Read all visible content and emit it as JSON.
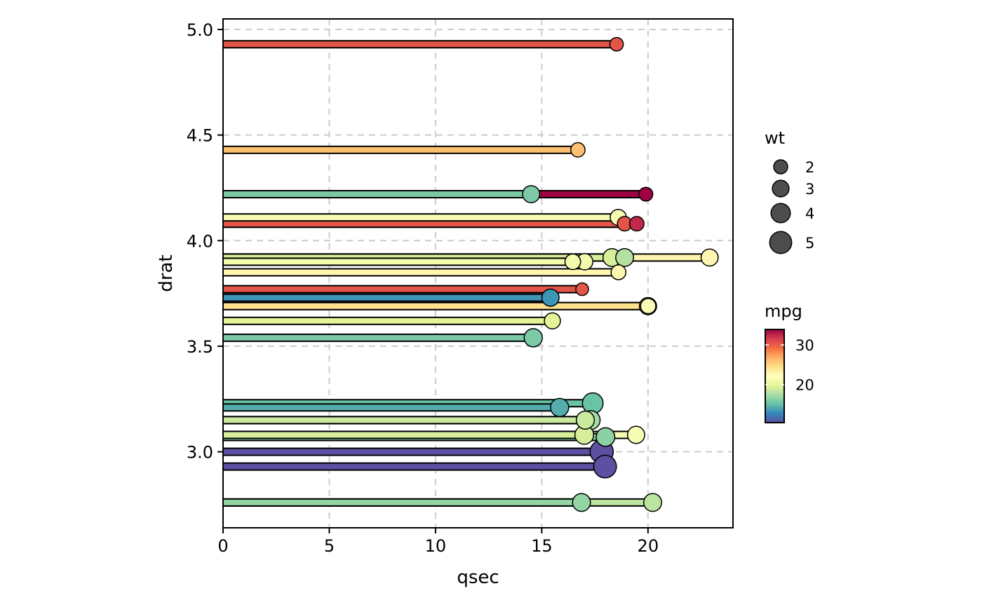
{
  "chart_data": {
    "type": "lollipop",
    "orientation": "horizontal",
    "xlabel": "qsec",
    "ylabel": "drat",
    "xlim": [
      0,
      24
    ],
    "ylim": [
      2.64,
      5.05
    ],
    "x_ticks": [
      0,
      5,
      10,
      15,
      20
    ],
    "x_tick_labels": [
      "0",
      "5",
      "10",
      "15",
      "20"
    ],
    "y_ticks": [
      3.0,
      3.5,
      4.0,
      4.5,
      5.0
    ],
    "y_tick_labels": [
      "3.0",
      "3.5",
      "4.0",
      "4.5",
      "5.0"
    ],
    "grid": true,
    "legend_position": "right",
    "size_legend": {
      "title": "wt",
      "values": [
        2,
        3,
        4,
        5
      ],
      "labels": [
        "2",
        "3",
        "4",
        "5"
      ]
    },
    "color_legend": {
      "title": "mpg",
      "range": [
        10.4,
        33.9
      ],
      "ticks": [
        20,
        30
      ],
      "tick_labels": [
        "20",
        "30"
      ],
      "colors": [
        "#5e4fa2",
        "#3288bd",
        "#66c2a5",
        "#abdda4",
        "#e6f598",
        "#ffffbf",
        "#fee08b",
        "#fdae61",
        "#f46d43",
        "#d53e4f",
        "#9e0142"
      ]
    },
    "points": [
      {
        "qsec": 18.52,
        "drat": 4.93,
        "wt": 1.835,
        "mpg": 30.4
      },
      {
        "qsec": 16.7,
        "drat": 4.43,
        "wt": 2.14,
        "mpg": 26.0
      },
      {
        "qsec": 14.5,
        "drat": 4.22,
        "wt": 3.17,
        "mpg": 15.8
      },
      {
        "qsec": 19.9,
        "drat": 4.22,
        "wt": 1.935,
        "mpg": 33.9
      },
      {
        "qsec": 18.6,
        "drat": 4.11,
        "wt": 2.78,
        "mpg": 21.4
      },
      {
        "qsec": 18.9,
        "drat": 4.08,
        "wt": 2.2,
        "mpg": 30.4
      },
      {
        "qsec": 19.47,
        "drat": 4.08,
        "wt": 2.2,
        "mpg": 32.4
      },
      {
        "qsec": 16.46,
        "drat": 3.9,
        "wt": 2.62,
        "mpg": 21.0
      },
      {
        "qsec": 17.02,
        "drat": 3.9,
        "wt": 2.875,
        "mpg": 21.0
      },
      {
        "qsec": 18.3,
        "drat": 3.92,
        "wt": 3.44,
        "mpg": 19.2
      },
      {
        "qsec": 18.9,
        "drat": 3.92,
        "wt": 3.44,
        "mpg": 17.8
      },
      {
        "qsec": 22.9,
        "drat": 3.92,
        "wt": 3.15,
        "mpg": 22.8
      },
      {
        "qsec": 18.61,
        "drat": 3.85,
        "wt": 2.32,
        "mpg": 22.8
      },
      {
        "qsec": 16.9,
        "drat": 3.77,
        "wt": 1.513,
        "mpg": 30.4
      },
      {
        "qsec": 15.41,
        "drat": 3.73,
        "wt": 3.215,
        "mpg": 13.3
      },
      {
        "qsec": 20.01,
        "drat": 3.69,
        "wt": 2.465,
        "mpg": 21.5
      },
      {
        "qsec": 20.0,
        "drat": 3.69,
        "wt": 3.19,
        "mpg": 24.4
      },
      {
        "qsec": 15.5,
        "drat": 3.62,
        "wt": 2.77,
        "mpg": 19.7
      },
      {
        "qsec": 14.6,
        "drat": 3.54,
        "wt": 3.57,
        "mpg": 15.8
      },
      {
        "qsec": 17.4,
        "drat": 3.23,
        "wt": 4.5,
        "mpg": 15.2
      },
      {
        "qsec": 15.84,
        "drat": 3.21,
        "wt": 3.57,
        "mpg": 14.3
      },
      {
        "qsec": 17.05,
        "drat": 3.15,
        "wt": 3.52,
        "mpg": 18.7
      },
      {
        "qsec": 17.3,
        "drat": 3.15,
        "wt": 3.845,
        "mpg": 17.3
      },
      {
        "qsec": 19.44,
        "drat": 3.08,
        "wt": 3.215,
        "mpg": 21.4
      },
      {
        "qsec": 17.0,
        "drat": 3.08,
        "wt": 3.78,
        "mpg": 19.2
      },
      {
        "qsec": 18.0,
        "drat": 3.07,
        "wt": 3.73,
        "mpg": 16.4
      },
      {
        "qsec": 17.82,
        "drat": 3.0,
        "wt": 5.424,
        "mpg": 10.4
      },
      {
        "qsec": 17.98,
        "drat": 2.93,
        "wt": 5.25,
        "mpg": 10.4
      },
      {
        "qsec": 16.87,
        "drat": 2.76,
        "wt": 3.46,
        "mpg": 16.7
      },
      {
        "qsec": 20.22,
        "drat": 2.76,
        "wt": 3.46,
        "mpg": 18.1
      }
    ]
  }
}
